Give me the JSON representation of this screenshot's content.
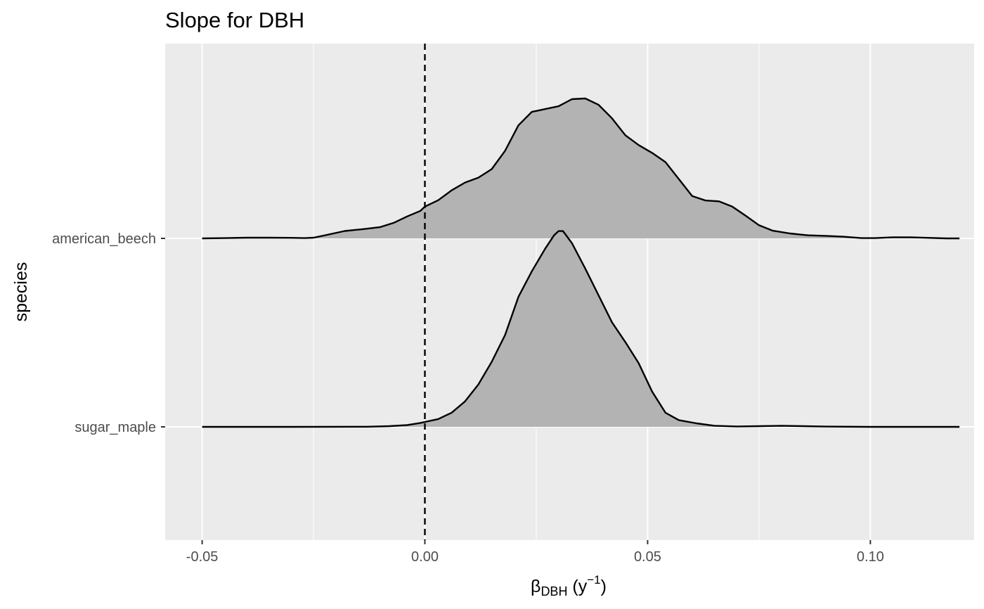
{
  "chart_data": {
    "type": "ridgeline-density",
    "title": "Slope for DBH",
    "xlabel": {
      "base": "β",
      "subscript": "DBH",
      "unit_open": " (y",
      "unit_sup": "−1",
      "unit_close": ")"
    },
    "ylabel": "species",
    "xlim": [
      -0.0583,
      0.1233
    ],
    "x_ticks": [
      {
        "value": -0.05,
        "label": "-0.05"
      },
      {
        "value": 0.0,
        "label": "0.00"
      },
      {
        "value": 0.05,
        "label": "0.05"
      },
      {
        "value": 0.1,
        "label": "0.10"
      }
    ],
    "y_categories": [
      "sugar_maple",
      "american_beech"
    ],
    "reference_line": {
      "x": 0.0,
      "style": "dashed"
    },
    "grid": true,
    "fill_color": "#b3b3b3",
    "line_color": "#000000",
    "panel_color": "#ebebeb",
    "series": [
      {
        "name": "american_beech",
        "points": [
          [
            -0.05,
            0.0
          ],
          [
            -0.045,
            0.002
          ],
          [
            -0.04,
            0.005
          ],
          [
            -0.035,
            0.005
          ],
          [
            -0.03,
            0.004
          ],
          [
            -0.027,
            0.002
          ],
          [
            -0.025,
            0.005
          ],
          [
            -0.022,
            0.025
          ],
          [
            -0.018,
            0.052
          ],
          [
            -0.014,
            0.065
          ],
          [
            -0.01,
            0.08
          ],
          [
            -0.007,
            0.11
          ],
          [
            -0.004,
            0.155
          ],
          [
            -0.001,
            0.195
          ],
          [
            0.0,
            0.225
          ],
          [
            0.003,
            0.27
          ],
          [
            0.006,
            0.34
          ],
          [
            0.009,
            0.395
          ],
          [
            0.012,
            0.43
          ],
          [
            0.015,
            0.49
          ],
          [
            0.018,
            0.62
          ],
          [
            0.021,
            0.8
          ],
          [
            0.024,
            0.895
          ],
          [
            0.027,
            0.915
          ],
          [
            0.03,
            0.935
          ],
          [
            0.033,
            0.985
          ],
          [
            0.036,
            0.99
          ],
          [
            0.039,
            0.945
          ],
          [
            0.042,
            0.85
          ],
          [
            0.045,
            0.73
          ],
          [
            0.048,
            0.66
          ],
          [
            0.051,
            0.605
          ],
          [
            0.054,
            0.54
          ],
          [
            0.057,
            0.42
          ],
          [
            0.06,
            0.3
          ],
          [
            0.063,
            0.268
          ],
          [
            0.066,
            0.262
          ],
          [
            0.069,
            0.225
          ],
          [
            0.072,
            0.16
          ],
          [
            0.075,
            0.093
          ],
          [
            0.078,
            0.055
          ],
          [
            0.082,
            0.035
          ],
          [
            0.086,
            0.022
          ],
          [
            0.09,
            0.018
          ],
          [
            0.094,
            0.012
          ],
          [
            0.098,
            0.002
          ],
          [
            0.101,
            0.002
          ],
          [
            0.105,
            0.008
          ],
          [
            0.109,
            0.008
          ],
          [
            0.113,
            0.004
          ],
          [
            0.117,
            0.0
          ],
          [
            0.12,
            0.0
          ]
        ]
      },
      {
        "name": "sugar_maple",
        "points": [
          [
            -0.05,
            0.0
          ],
          [
            -0.03,
            0.0
          ],
          [
            -0.013,
            0.001
          ],
          [
            -0.008,
            0.005
          ],
          [
            -0.004,
            0.013
          ],
          [
            -0.001,
            0.028
          ],
          [
            0.0,
            0.035
          ],
          [
            0.003,
            0.055
          ],
          [
            0.006,
            0.1
          ],
          [
            0.009,
            0.18
          ],
          [
            0.012,
            0.3
          ],
          [
            0.015,
            0.46
          ],
          [
            0.018,
            0.65
          ],
          [
            0.021,
            0.92
          ],
          [
            0.024,
            1.1
          ],
          [
            0.027,
            1.26
          ],
          [
            0.029,
            1.355
          ],
          [
            0.03,
            1.385
          ],
          [
            0.031,
            1.385
          ],
          [
            0.033,
            1.3
          ],
          [
            0.036,
            1.12
          ],
          [
            0.039,
            0.93
          ],
          [
            0.042,
            0.74
          ],
          [
            0.045,
            0.6
          ],
          [
            0.048,
            0.45
          ],
          [
            0.051,
            0.25
          ],
          [
            0.054,
            0.1
          ],
          [
            0.057,
            0.048
          ],
          [
            0.061,
            0.025
          ],
          [
            0.065,
            0.008
          ],
          [
            0.07,
            0.003
          ],
          [
            0.075,
            0.005
          ],
          [
            0.08,
            0.008
          ],
          [
            0.085,
            0.005
          ],
          [
            0.09,
            0.002
          ],
          [
            0.1,
            0.0
          ],
          [
            0.12,
            0.0
          ]
        ]
      }
    ]
  }
}
